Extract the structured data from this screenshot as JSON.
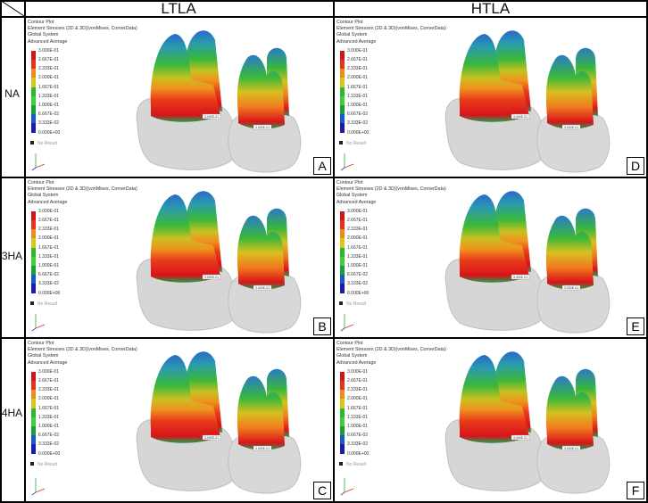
{
  "columns": [
    "LTLA",
    "HTLA"
  ],
  "rows": [
    "NA",
    "3HA",
    "4HA"
  ],
  "legend": {
    "title": "Contour Plot",
    "line2": "Element Stresses (2D & 3D)(vonMises, CornerData)",
    "line3": "Global System",
    "line4": "Advanced Average",
    "ticks": [
      "3.000E-01",
      "2.667E-01",
      "2.333E-01",
      "2.000E-01",
      "1.667E-01",
      "1.333E-01",
      "1.000E-01",
      "6.667E-02",
      "3.333E-02",
      "0.000E+00"
    ],
    "colors": [
      "#d4141c",
      "#e8321c",
      "#f08a1e",
      "#d8c81a",
      "#2eb82e",
      "#3cd23c",
      "#1a9e3c",
      "#1a5ac8",
      "#1a1ab4",
      "#101060"
    ],
    "no_result": "No Result",
    "value_label": "3.000E-01"
  },
  "panels": [
    {
      "letter": "A",
      "row": 0,
      "col": 0
    },
    {
      "letter": "D",
      "row": 0,
      "col": 1
    },
    {
      "letter": "B",
      "row": 1,
      "col": 0
    },
    {
      "letter": "E",
      "row": 1,
      "col": 1
    },
    {
      "letter": "C",
      "row": 2,
      "col": 0
    },
    {
      "letter": "F",
      "row": 2,
      "col": 1
    }
  ]
}
